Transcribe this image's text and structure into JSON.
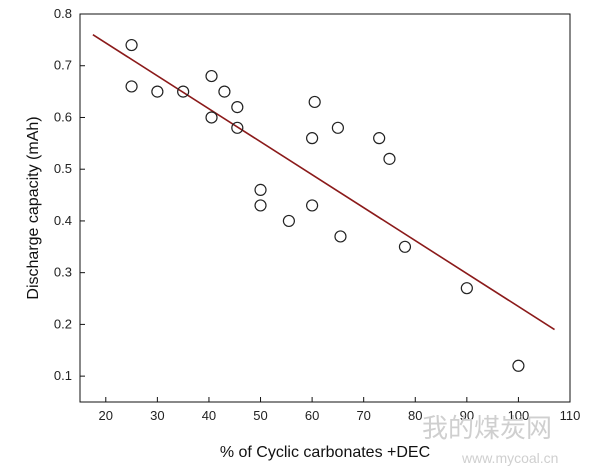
{
  "chart_data": {
    "type": "scatter",
    "title": "",
    "xlabel": "% of Cyclic carbonates +DEC",
    "ylabel": "Discharge capacity (mAh)",
    "xlim": [
      15,
      110
    ],
    "ylim": [
      0.05,
      0.8
    ],
    "x_ticks": [
      20,
      30,
      40,
      50,
      60,
      70,
      80,
      90,
      100,
      110
    ],
    "y_ticks": [
      0.1,
      0.2,
      0.3,
      0.4,
      0.5,
      0.6,
      0.7,
      0.8
    ],
    "grid": false,
    "legend": "none",
    "series": [
      {
        "marker": "open-circle",
        "x": [
          25,
          25,
          30,
          35,
          40.5,
          40.5,
          43,
          45.5,
          45.5,
          50,
          50,
          55.5,
          60,
          60,
          60.5,
          65,
          65.5,
          73,
          75,
          78,
          90,
          100
        ],
        "y": [
          0.74,
          0.66,
          0.65,
          0.65,
          0.68,
          0.6,
          0.65,
          0.62,
          0.58,
          0.46,
          0.43,
          0.4,
          0.43,
          0.56,
          0.63,
          0.58,
          0.37,
          0.56,
          0.52,
          0.35,
          0.27,
          0.12
        ]
      }
    ],
    "fit_line": {
      "x": [
        17.5,
        107
      ],
      "y": [
        0.76,
        0.19
      ]
    },
    "colors": {
      "fit_line": "#8b1a1a",
      "marker": "#222222"
    }
  },
  "watermark": {
    "text": "我的煤炭网",
    "url": "www.mycoal.cn"
  }
}
